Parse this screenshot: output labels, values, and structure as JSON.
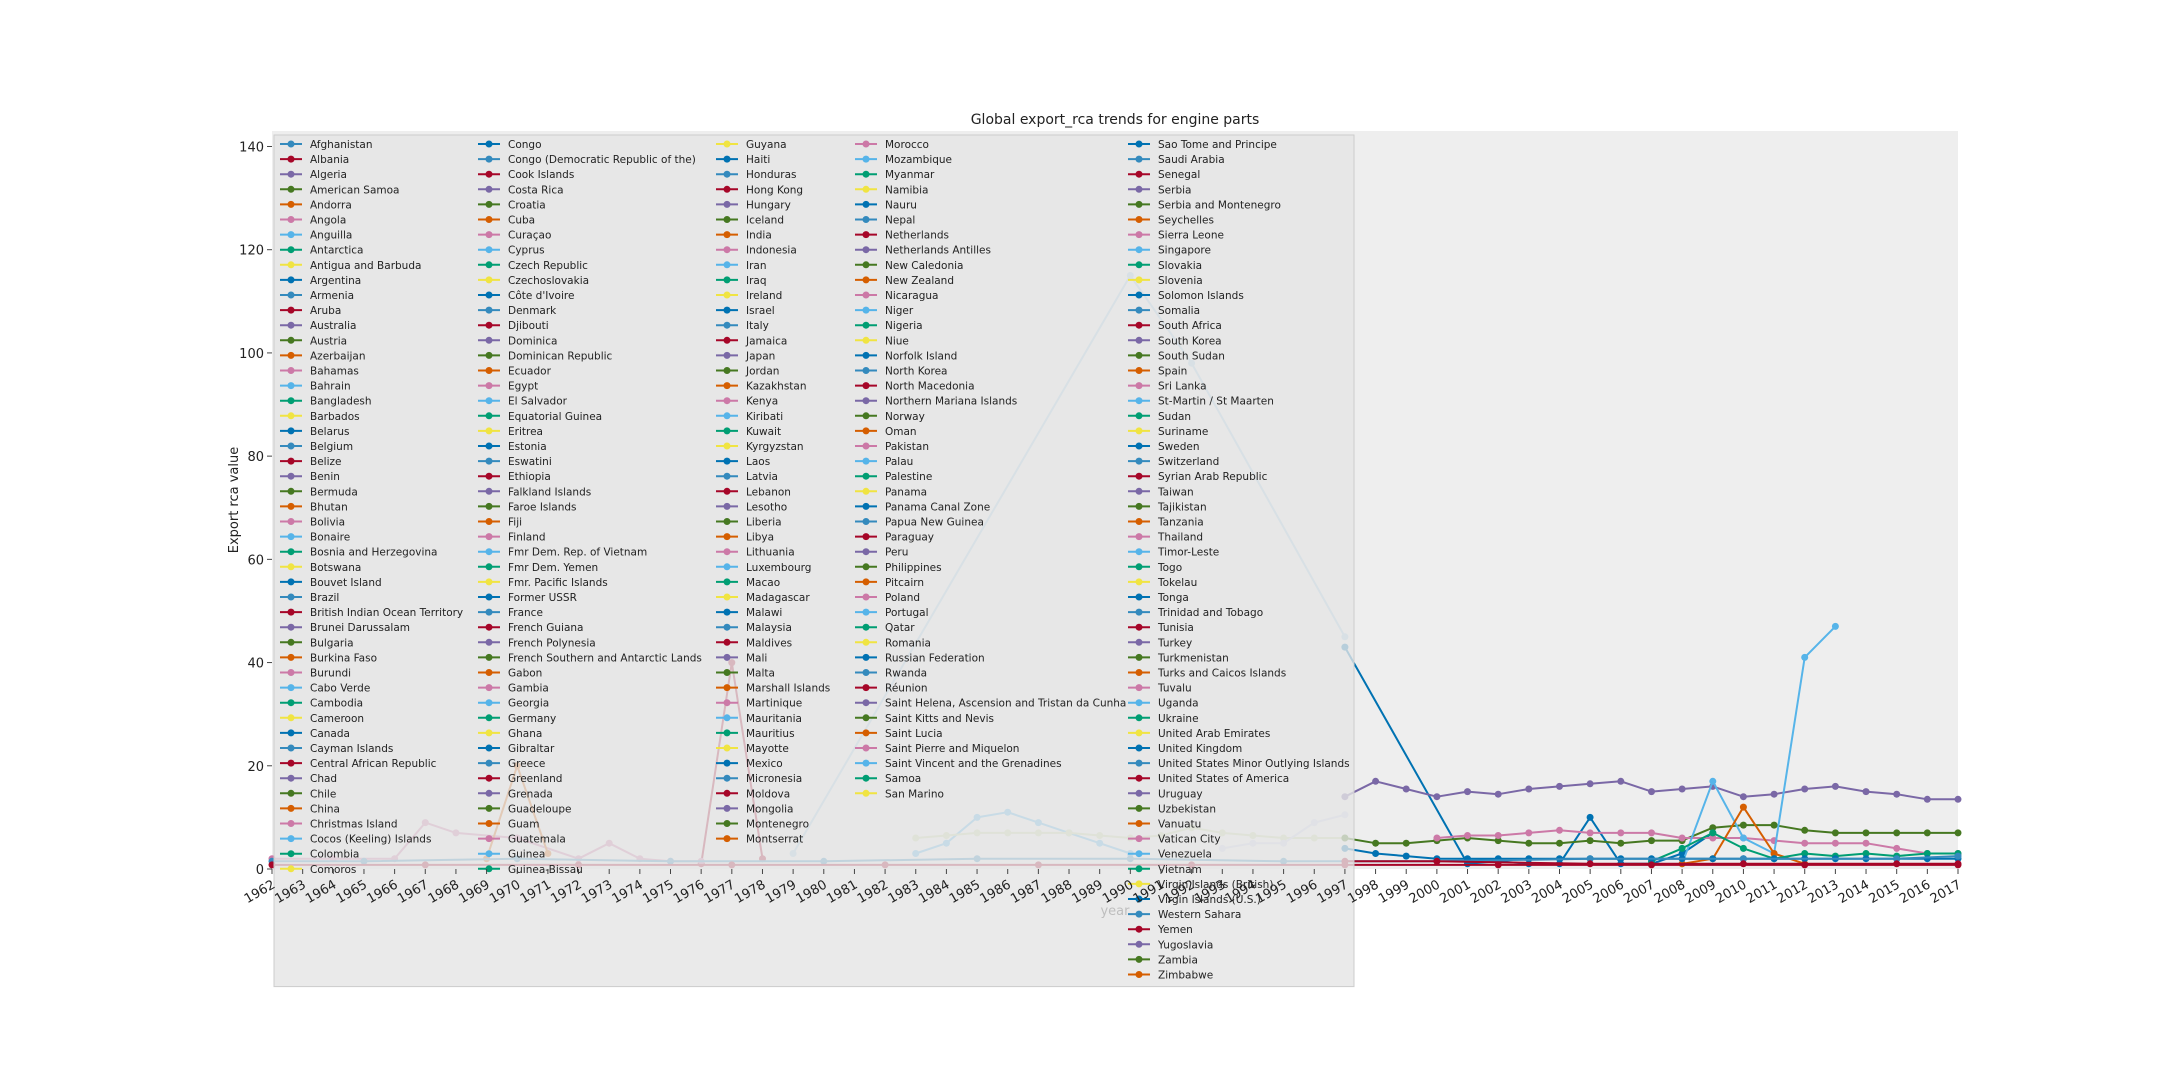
{
  "chart_data": {
    "type": "line",
    "title": "Global export_rca trends for engine parts",
    "xlabel": "year",
    "ylabel": "Export rca value",
    "xlim": [
      1962,
      2017
    ],
    "ylim": [
      0,
      143
    ],
    "grid": false,
    "legend_position": "top-left",
    "legend_columns": 5,
    "x": [
      1962,
      1963,
      1964,
      1965,
      1966,
      1967,
      1968,
      1969,
      1970,
      1971,
      1972,
      1973,
      1974,
      1975,
      1976,
      1977,
      1978,
      1979,
      1980,
      1981,
      1982,
      1983,
      1984,
      1985,
      1986,
      1987,
      1988,
      1989,
      1990,
      1991,
      1992,
      1993,
      1994,
      1995,
      1996,
      1997,
      1998,
      1999,
      2000,
      2001,
      2002,
      2003,
      2004,
      2005,
      2006,
      2007,
      2008,
      2009,
      2010,
      2011,
      2012,
      2013,
      2014,
      2015,
      2016,
      2017
    ],
    "y_ticks": [
      0,
      20,
      40,
      60,
      80,
      100,
      120,
      140
    ],
    "x_tick_labels": [
      "1962",
      "1963",
      "1964",
      "1965",
      "1966",
      "1967",
      "1968",
      "1969",
      "1970",
      "1971",
      "1972",
      "1973",
      "1974",
      "1975",
      "1976",
      "1977",
      "1978",
      "1979",
      "1980",
      "1981",
      "1982",
      "1983",
      "1984",
      "1985",
      "1986",
      "1987",
      "1988",
      "1989",
      "1990",
      "1991",
      "1992",
      "1993",
      "1994",
      "1995",
      "1996",
      "1997",
      "1998",
      "1999",
      "2000",
      "2001",
      "2002",
      "2003",
      "2004",
      "2005",
      "2006",
      "2007",
      "2008",
      "2009",
      "2010",
      "2011",
      "2012",
      "2013",
      "2014",
      "2015",
      "2016",
      "2017"
    ],
    "palette": [
      "#348abd",
      "#a60628",
      "#7a68a6",
      "#467821",
      "#d55e00",
      "#cc79a7",
      "#56b4e9",
      "#009e73",
      "#f0e442",
      "#0072b2"
    ],
    "legend_entries": [
      "Afghanistan",
      "Albania",
      "Algeria",
      "American Samoa",
      "Andorra",
      "Angola",
      "Anguilla",
      "Antarctica",
      "Antigua and Barbuda",
      "Argentina",
      "Armenia",
      "Aruba",
      "Australia",
      "Austria",
      "Azerbaijan",
      "Bahamas",
      "Bahrain",
      "Bangladesh",
      "Barbados",
      "Belarus",
      "Belgium",
      "Belize",
      "Benin",
      "Bermuda",
      "Bhutan",
      "Bolivia",
      "Bonaire",
      "Bosnia and Herzegovina",
      "Botswana",
      "Bouvet Island",
      "Brazil",
      "British Indian Ocean Territory",
      "Brunei Darussalam",
      "Bulgaria",
      "Burkina Faso",
      "Burundi",
      "Cabo Verde",
      "Cambodia",
      "Cameroon",
      "Canada",
      "Cayman Islands",
      "Central African Republic",
      "Chad",
      "Chile",
      "China",
      "Christmas Island",
      "Cocos (Keeling) Islands",
      "Colombia",
      "Comoros",
      "Congo",
      "Congo (Democratic Republic of the)",
      "Cook Islands",
      "Costa Rica",
      "Croatia",
      "Cuba",
      "Curaçao",
      "Cyprus",
      "Czech Republic",
      "Czechoslovakia",
      "Côte d'Ivoire",
      "Denmark",
      "Djibouti",
      "Dominica",
      "Dominican Republic",
      "Ecuador",
      "Egypt",
      "El Salvador",
      "Equatorial Guinea",
      "Eritrea",
      "Estonia",
      "Eswatini",
      "Ethiopia",
      "Falkland Islands",
      "Faroe Islands",
      "Fiji",
      "Finland",
      "Fmr Dem. Rep. of Vietnam",
      "Fmr Dem. Yemen",
      "Fmr. Pacific Islands",
      "Former USSR",
      "France",
      "French Guiana",
      "French Polynesia",
      "French Southern and Antarctic Lands",
      "Gabon",
      "Gambia",
      "Georgia",
      "Germany",
      "Ghana",
      "Gibraltar",
      "Greece",
      "Greenland",
      "Grenada",
      "Guadeloupe",
      "Guam",
      "Guatemala",
      "Guinea",
      "Guinea-Bissau",
      "Guyana",
      "Haiti",
      "Honduras",
      "Hong Kong",
      "Hungary",
      "Iceland",
      "India",
      "Indonesia",
      "Iran",
      "Iraq",
      "Ireland",
      "Israel",
      "Italy",
      "Jamaica",
      "Japan",
      "Jordan",
      "Kazakhstan",
      "Kenya",
      "Kiribati",
      "Kuwait",
      "Kyrgyzstan",
      "Laos",
      "Latvia",
      "Lebanon",
      "Lesotho",
      "Liberia",
      "Libya",
      "Lithuania",
      "Luxembourg",
      "Macao",
      "Madagascar",
      "Malawi",
      "Malaysia",
      "Maldives",
      "Mali",
      "Malta",
      "Marshall Islands",
      "Martinique",
      "Mauritania",
      "Mauritius",
      "Mayotte",
      "Mexico",
      "Micronesia",
      "Moldova",
      "Mongolia",
      "Montenegro",
      "Montserrat",
      "Morocco",
      "Mozambique",
      "Myanmar",
      "Namibia",
      "Nauru",
      "Nepal",
      "Netherlands",
      "Netherlands Antilles",
      "New Caledonia",
      "New Zealand",
      "Nicaragua",
      "Niger",
      "Nigeria",
      "Niue",
      "Norfolk Island",
      "North Korea",
      "North Macedonia",
      "Northern Mariana Islands",
      "Norway",
      "Oman",
      "Pakistan",
      "Palau",
      "Palestine",
      "Panama",
      "Panama Canal Zone",
      "Papua New Guinea",
      "Paraguay",
      "Peru",
      "Philippines",
      "Pitcairn",
      "Poland",
      "Portugal",
      "Qatar",
      "Romania",
      "Russian Federation",
      "Rwanda",
      "Réunion",
      "Saint Helena, Ascension and Tristan da Cunha",
      "Saint Kitts and Nevis",
      "Saint Lucia",
      "Saint Pierre and Miquelon",
      "Saint Vincent and the Grenadines",
      "Samoa",
      "San Marino",
      "Sao Tome and Principe",
      "Saudi Arabia",
      "Senegal",
      "Serbia",
      "Serbia and Montenegro",
      "Seychelles",
      "Sierra Leone",
      "Singapore",
      "Slovakia",
      "Slovenia",
      "Solomon Islands",
      "Somalia",
      "South Africa",
      "South Korea",
      "South Sudan",
      "Spain",
      "Sri Lanka",
      "St-Martin / St Maarten",
      "Sudan",
      "Suriname",
      "Sweden",
      "Switzerland",
      "Syrian Arab Republic",
      "Taiwan",
      "Tajikistan",
      "Tanzania",
      "Thailand",
      "Timor-Leste",
      "Togo",
      "Tokelau",
      "Tonga",
      "Trinidad and Tobago",
      "Tunisia",
      "Turkey",
      "Turkmenistan",
      "Turks and Caicos Islands",
      "Tuvalu",
      "Uganda",
      "Ukraine",
      "United Arab Emirates",
      "United Kingdom",
      "United States Minor Outlying Islands",
      "United States of America",
      "Uruguay",
      "Uzbekistan",
      "Vanuatu",
      "Vatican City",
      "Venezuela",
      "Vietnam",
      "Virgin Islands (British)",
      "Virgin Islands (U.S.)",
      "Western Sahara",
      "Yemen",
      "Yugoslavia",
      "Zambia",
      "Zimbabwe"
    ],
    "legend_column_breaks": [
      49,
      98,
      145,
      189
    ],
    "series": [
      {
        "name": "Hong Kong",
        "color": "#a60628",
        "x": [
          1976,
          1977,
          1978
        ],
        "y": [
          1.0,
          40,
          2.0
        ]
      },
      {
        "name": "Liberia",
        "color": "#cc79a7",
        "x": [
          1962,
          1964,
          1966,
          1967,
          1968,
          1970,
          1972,
          1973,
          1974,
          1975,
          1976
        ],
        "y": [
          2.0,
          2.0,
          2.0,
          9.0,
          7.0,
          6.0,
          2.0,
          5.0,
          2.0,
          1.5,
          1.5
        ]
      },
      {
        "name": "Gabon",
        "color": "#d55e00",
        "x": [
          1969,
          1970,
          1971
        ],
        "y": [
          2.0,
          20,
          3.0
        ]
      },
      {
        "name": "Sierra Leone",
        "color": "#a6cee3",
        "x": [
          1979,
          1990,
          1992,
          1997
        ],
        "y": [
          3.0,
          115,
          98,
          45
        ]
      },
      {
        "name": "Cocos (Keeling) Islands",
        "color": "#56b4e9",
        "x": [
          1983,
          1984,
          1985,
          1986,
          1987,
          1988,
          1989,
          1990
        ],
        "y": [
          3.0,
          5.0,
          10.0,
          11.0,
          9.0,
          7.0,
          5.0,
          3.0
        ]
      },
      {
        "name": "Armenia",
        "color": "#c9d6a3",
        "x": [
          1983,
          1984,
          1985,
          1986,
          1987,
          1988,
          1989,
          1990,
          1991,
          1992,
          1993,
          1994,
          1995,
          1996,
          1997
        ],
        "y": [
          6.0,
          6.5,
          7.0,
          7.0,
          7.0,
          7.0,
          6.5,
          6.0,
          6.5,
          8.0,
          7.0,
          6.5,
          6.0,
          6.0,
          6.0
        ]
      },
      {
        "name": "Uganda",
        "color": "#cbd0e8",
        "x": [
          1993,
          1994,
          1995,
          1996,
          1997
        ],
        "y": [
          4.0,
          5.0,
          5.0,
          9.0,
          10.5
        ]
      },
      {
        "name": "Somalia",
        "color": "#0072b2",
        "x": [
          1997,
          2001,
          2002,
          2003,
          2004,
          2005,
          2006,
          2007,
          2008,
          2009
        ],
        "y": [
          43,
          1.0,
          1.5,
          1.0,
          1.0,
          10.0,
          1.0,
          1.0,
          3.0,
          7.0
        ]
      },
      {
        "name": "Zimbabwe",
        "color": "#7a68a6",
        "x": [
          1997,
          1998,
          1999,
          2000,
          2001,
          2002,
          2003,
          2004,
          2005,
          2006,
          2007,
          2008,
          2009,
          2010,
          2011,
          2012,
          2013,
          2014,
          2015,
          2016,
          2017
        ],
        "y": [
          14.0,
          17.0,
          15.5,
          14.0,
          15.0,
          14.5,
          15.5,
          16.0,
          16.5,
          17.0,
          15.0,
          15.5,
          16.0,
          14.0,
          14.5,
          15.5,
          16.0,
          15.0,
          14.5,
          13.5,
          13.5
        ]
      },
      {
        "name": "South Sudan",
        "color": "#467821",
        "x": [
          1997,
          1998,
          1999,
          2000,
          2001,
          2002,
          2003,
          2004,
          2005,
          2006,
          2007,
          2008,
          2009,
          2010,
          2011,
          2012,
          2013,
          2014,
          2015,
          2016,
          2017
        ],
        "y": [
          6.0,
          5.0,
          5.0,
          5.5,
          6.0,
          5.5,
          5.0,
          5.0,
          5.5,
          5.0,
          5.5,
          5.5,
          8.0,
          8.5,
          8.5,
          7.5,
          7.0,
          7.0,
          7.0,
          7.0,
          7.0
        ]
      },
      {
        "name": "Andorra",
        "color": "#cc79a7",
        "x": [
          2000,
          2001,
          2002,
          2003,
          2004,
          2005,
          2006,
          2007,
          2008,
          2009,
          2010,
          2011,
          2012,
          2013,
          2014,
          2015,
          2016,
          2017
        ],
        "y": [
          6.0,
          6.5,
          6.5,
          7.0,
          7.5,
          7.0,
          7.0,
          7.0,
          6.0,
          6.0,
          6.0,
          5.5,
          5.0,
          5.0,
          5.0,
          4.0,
          3.0,
          3.0
        ]
      },
      {
        "name": "Macao",
        "color": "#56b4e9",
        "x": [
          2008,
          2009,
          2010,
          2011,
          2012,
          2013
        ],
        "y": [
          1.0,
          17.0,
          6.0,
          3.0,
          41,
          47
        ]
      },
      {
        "name": "Bosnia and Herzegovina",
        "color": "#d55e00",
        "x": [
          2008,
          2009,
          2010,
          2011,
          2012
        ],
        "y": [
          1.0,
          2.0,
          12.0,
          3.0,
          1.0
        ]
      },
      {
        "name": "Croatia",
        "color": "#009e73",
        "x": [
          2007,
          2008,
          2009,
          2010,
          2011,
          2012,
          2013,
          2014,
          2015,
          2016,
          2017
        ],
        "y": [
          1.5,
          4.0,
          7.0,
          4.0,
          2.0,
          3.0,
          2.5,
          3.0,
          2.5,
          3.0,
          3.0
        ]
      },
      {
        "name": "Zambia",
        "color": "#0072b2",
        "x": [
          1997,
          1998,
          1999,
          2000,
          2001,
          2002,
          2003,
          2004,
          2005,
          2006,
          2007,
          2008,
          2009,
          2010,
          2011,
          2012,
          2013,
          2014,
          2015,
          2016,
          2017
        ],
        "y": [
          4.0,
          3.0,
          2.5,
          2.0,
          2.0,
          2.0,
          2.0,
          2.0,
          2.0,
          2.0,
          2.0,
          2.0,
          2.0,
          2.0,
          2.0,
          2.0,
          2.0,
          2.0,
          2.0,
          2.0,
          2.0
        ]
      },
      {
        "name": "Afghanistan",
        "color": "#348abd",
        "x": [
          1962,
          1965,
          1970,
          1975,
          1980,
          1985,
          1990,
          1995,
          2000,
          2005,
          2010,
          2015,
          2017
        ],
        "y": [
          1.5,
          1.5,
          2.0,
          1.5,
          1.5,
          2.0,
          2.0,
          1.5,
          1.5,
          2.0,
          2.0,
          2.0,
          2.5
        ]
      },
      {
        "name": "Albania",
        "color": "#a60628",
        "x": [
          1997,
          2000,
          2005,
          2010,
          2015,
          2017
        ],
        "y": [
          1.5,
          1.5,
          1.0,
          1.0,
          1.0,
          1.0
        ]
      },
      {
        "name": "Netherlands",
        "color": "#a60628",
        "x": [
          1962,
          1967,
          1972,
          1977,
          1982,
          1987,
          1992,
          1997,
          2002,
          2007,
          2012,
          2017
        ],
        "y": [
          0.8,
          0.8,
          0.8,
          0.8,
          0.8,
          0.8,
          0.8,
          0.8,
          0.8,
          0.8,
          0.8,
          0.8
        ]
      }
    ]
  }
}
